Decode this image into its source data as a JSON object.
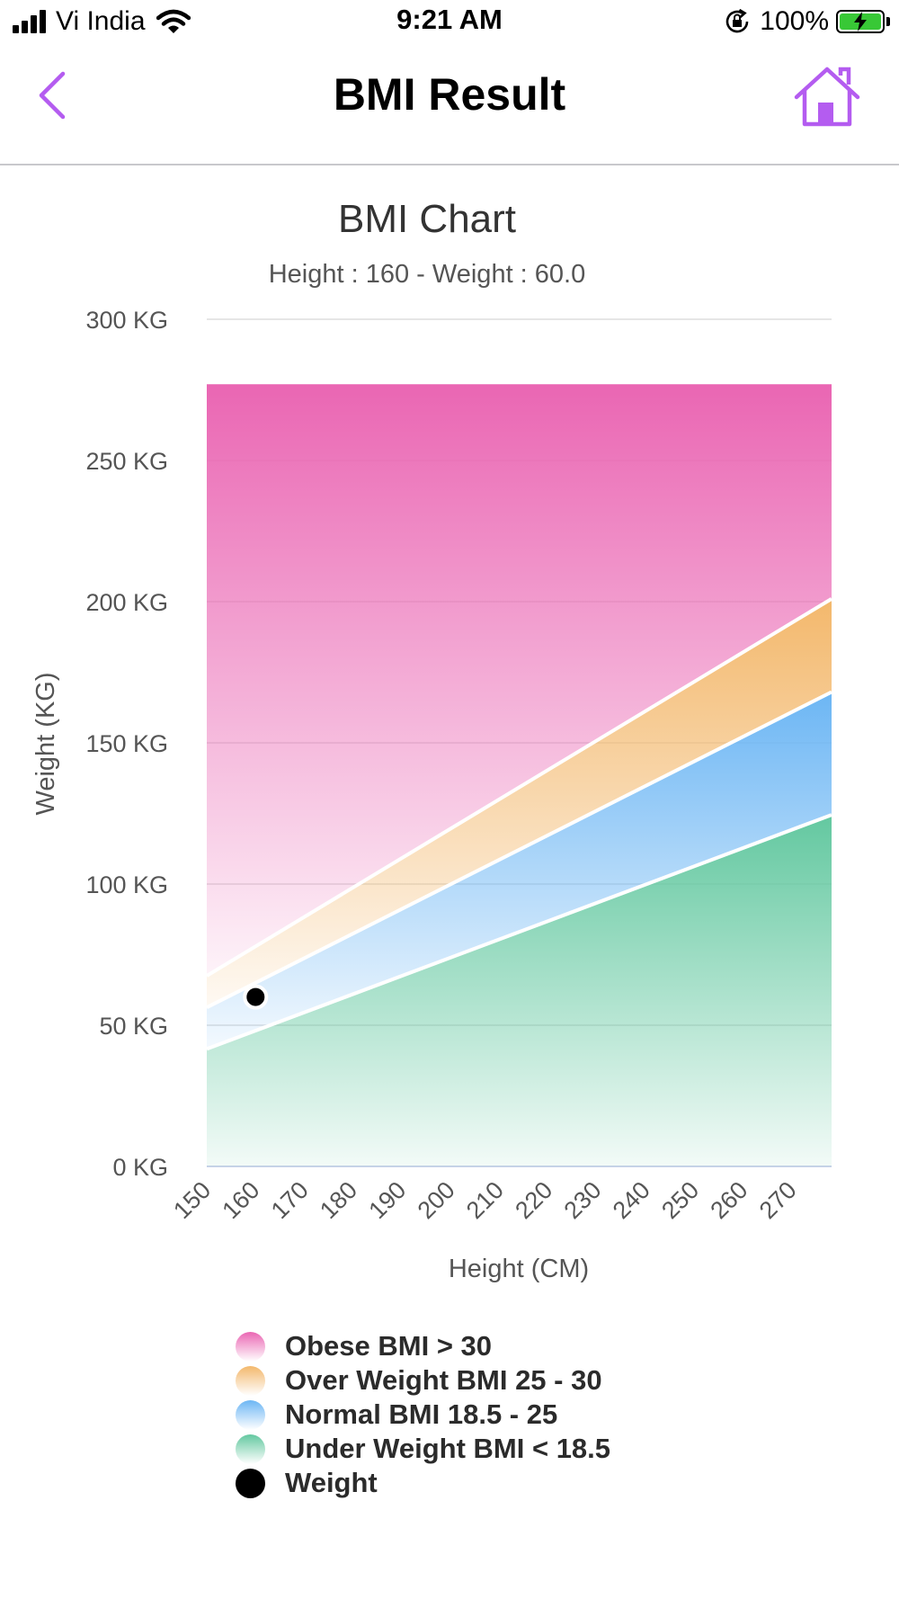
{
  "status_bar": {
    "carrier": "Vi India",
    "time": "9:21 AM",
    "battery": "100%"
  },
  "nav": {
    "title": "BMI Result",
    "back_icon": "chevron-left-icon",
    "home_icon": "home-icon"
  },
  "colors": {
    "accent": "#b45cf0",
    "obese": "#ea66b3",
    "overweight": "#f3b86c",
    "normal": "#6cb6f4",
    "underweight": "#63c8a0",
    "weight_point": "#000000"
  },
  "chart_data": {
    "type": "area",
    "title": "BMI Chart",
    "subtitle": "Height : 160 - Weight : 60.0",
    "xlabel": "Height (CM)",
    "ylabel": "Weight (KG)",
    "x_ticks": [
      "150",
      "160",
      "170",
      "180",
      "190",
      "200",
      "210",
      "220",
      "230",
      "240",
      "250",
      "260",
      "270"
    ],
    "y_ticks": [
      "0 KG",
      "50 KG",
      "100 KG",
      "150 KG",
      "200 KG",
      "250 KG",
      "300 KG"
    ],
    "xlim": [
      150,
      278
    ],
    "ylim": [
      0,
      300
    ],
    "grid": true,
    "legend_position": "bottom",
    "x": [
      150,
      278
    ],
    "series": [
      {
        "name": "Obese BMI > 30",
        "lower": [
          67.5,
          201
        ],
        "upper": [
          277,
          277
        ],
        "color_key": "obese"
      },
      {
        "name": "Over Weight BMI 25 - 30",
        "lower": [
          56.3,
          168
        ],
        "upper": [
          67.5,
          201
        ],
        "color_key": "overweight"
      },
      {
        "name": "Normal BMI 18.5 - 25",
        "lower": [
          41.6,
          124.5
        ],
        "upper": [
          56.3,
          168
        ],
        "color_key": "normal"
      },
      {
        "name": "Under Weight BMI < 18.5",
        "lower": [
          0,
          0
        ],
        "upper": [
          41.6,
          124.5
        ],
        "color_key": "underweight"
      }
    ],
    "points": [
      {
        "name": "Weight",
        "x": 160,
        "y": 60.0
      }
    ]
  }
}
